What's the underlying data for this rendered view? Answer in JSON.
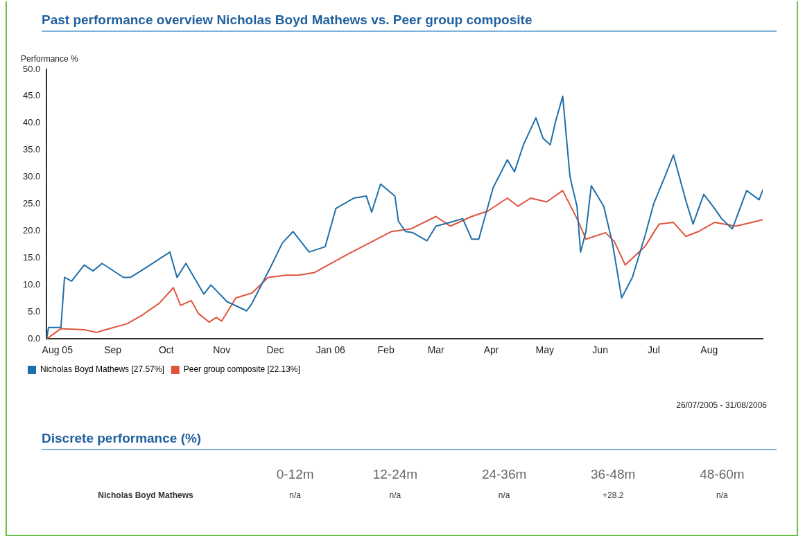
{
  "chart_data": [
    {
      "type": "line",
      "title": "Past performance overview Nicholas Boyd Mathews vs. Peer group composite",
      "ylabel": "Performance %",
      "xlim": [
        "2005-07-26",
        "2006-08-31"
      ],
      "xticks": [
        {
          "value": "2005-08-01",
          "label": "Aug 05"
        },
        {
          "value": "2005-09-01",
          "label": "Sep"
        },
        {
          "value": "2005-10-01",
          "label": "Oct"
        },
        {
          "value": "2005-11-01",
          "label": "Nov"
        },
        {
          "value": "2005-12-01",
          "label": "Dec"
        },
        {
          "value": "2006-01-01",
          "label": "Jan 06"
        },
        {
          "value": "2006-02-01",
          "label": "Feb"
        },
        {
          "value": "2006-03-01",
          "label": "Mar"
        },
        {
          "value": "2006-04-01",
          "label": "Apr"
        },
        {
          "value": "2006-05-01",
          "label": "May"
        },
        {
          "value": "2006-06-01",
          "label": "Jun"
        },
        {
          "value": "2006-07-01",
          "label": "Jul"
        },
        {
          "value": "2006-08-01",
          "label": "Aug"
        }
      ],
      "ylim": [
        0,
        50
      ],
      "yticks": [
        {
          "value": 0,
          "label": "0.0"
        },
        {
          "value": 5,
          "label": "5.0"
        },
        {
          "value": 10,
          "label": "10.0"
        },
        {
          "value": 15,
          "label": "15.0"
        },
        {
          "value": 20,
          "label": "20.0"
        },
        {
          "value": 25,
          "label": "25.0"
        },
        {
          "value": 30,
          "label": "30.0"
        },
        {
          "value": 35,
          "label": "35.0"
        },
        {
          "value": 40,
          "label": "40.0"
        },
        {
          "value": 45,
          "label": "45.0"
        },
        {
          "value": 50,
          "label": "50.0"
        }
      ],
      "grid": false,
      "legend": "bottom left",
      "marker": "none",
      "line_style": "solid",
      "series": [
        {
          "name": "Nicholas Boyd Mathews [27.57%]",
          "color": "#1f6fa8",
          "x": [
            "2005-07-26",
            "2005-07-27",
            "2005-08-03",
            "2005-08-05",
            "2005-08-09",
            "2005-08-16",
            "2005-08-21",
            "2005-08-26",
            "2005-09-07",
            "2005-09-11",
            "2005-09-21",
            "2005-10-03",
            "2005-10-07",
            "2005-10-12",
            "2005-10-22",
            "2005-10-26",
            "2005-11-04",
            "2005-11-15",
            "2005-11-18",
            "2005-11-29",
            "2005-12-05",
            "2005-12-11",
            "2005-12-20",
            "2005-12-29",
            "2006-01-04",
            "2006-01-14",
            "2006-01-21",
            "2006-01-24",
            "2006-01-29",
            "2006-02-06",
            "2006-02-08",
            "2006-02-12",
            "2006-02-16",
            "2006-02-24",
            "2006-03-01",
            "2006-03-09",
            "2006-03-16",
            "2006-03-21",
            "2006-03-25",
            "2006-04-02",
            "2006-04-10",
            "2006-04-14",
            "2006-04-19",
            "2006-04-26",
            "2006-04-30",
            "2006-05-04",
            "2006-05-07",
            "2006-05-11",
            "2006-05-15",
            "2006-05-16",
            "2006-05-19",
            "2006-05-21",
            "2006-05-24",
            "2006-05-27",
            "2006-06-03",
            "2006-06-08",
            "2006-06-13",
            "2006-06-19",
            "2006-06-26",
            "2006-07-01",
            "2006-07-07",
            "2006-07-12",
            "2006-07-19",
            "2006-07-23",
            "2006-07-29",
            "2006-08-04",
            "2006-08-08",
            "2006-08-14",
            "2006-08-22",
            "2006-08-29",
            "2006-08-31"
          ],
          "values": [
            0,
            2.1,
            2.1,
            11.4,
            10.7,
            13.7,
            12.6,
            14.0,
            11.4,
            11.4,
            13.5,
            16.1,
            11.4,
            14.0,
            8.3,
            10.0,
            6.9,
            5.2,
            6.6,
            13.7,
            17.8,
            19.9,
            16.1,
            17.1,
            24.2,
            26.1,
            26.5,
            23.5,
            28.7,
            26.5,
            21.8,
            19.9,
            19.7,
            18.2,
            20.9,
            21.6,
            22.3,
            18.5,
            18.5,
            28.0,
            33.2,
            31.0,
            36.0,
            41.0,
            37.2,
            36.0,
            40.3,
            45.0,
            30.3,
            28.7,
            24.6,
            16.1,
            19.9,
            28.4,
            24.6,
            17.5,
            7.6,
            11.4,
            19.0,
            25.1,
            29.9,
            34.1,
            25.6,
            21.3,
            26.8,
            24.2,
            22.3,
            20.4,
            27.5,
            25.8,
            27.6
          ]
        },
        {
          "name": "Peer group composite [22.13%]",
          "color": "#e0533a",
          "x": [
            "2005-07-26",
            "2005-08-03",
            "2005-08-16",
            "2005-08-23",
            "2005-08-28",
            "2005-09-09",
            "2005-09-17",
            "2005-09-27",
            "2005-10-05",
            "2005-10-09",
            "2005-10-15",
            "2005-10-19",
            "2005-10-25",
            "2005-10-29",
            "2005-11-01",
            "2005-11-09",
            "2005-11-18",
            "2005-11-27",
            "2005-12-07",
            "2005-12-14",
            "2005-12-23",
            "2006-01-10",
            "2006-01-24",
            "2006-02-04",
            "2006-02-15",
            "2006-03-01",
            "2006-03-09",
            "2006-03-21",
            "2006-03-30",
            "2006-04-10",
            "2006-04-16",
            "2006-04-23",
            "2006-05-02",
            "2006-05-11",
            "2006-05-19",
            "2006-05-24",
            "2006-06-04",
            "2006-06-09",
            "2006-06-15",
            "2006-06-26",
            "2006-07-04",
            "2006-07-12",
            "2006-07-19",
            "2006-07-26",
            "2006-08-04",
            "2006-08-16",
            "2006-08-31"
          ],
          "values": [
            0,
            1.9,
            1.7,
            1.2,
            1.7,
            2.8,
            4.3,
            6.6,
            9.5,
            6.2,
            7.1,
            4.7,
            3.1,
            4.0,
            3.3,
            7.6,
            8.5,
            11.4,
            11.8,
            11.8,
            12.3,
            15.6,
            18.0,
            19.9,
            20.4,
            22.7,
            20.9,
            22.7,
            23.7,
            26.1,
            24.6,
            26.1,
            25.4,
            27.5,
            22.3,
            18.5,
            19.7,
            18.0,
            13.7,
            17.1,
            21.3,
            21.6,
            19.0,
            19.9,
            21.6,
            20.9,
            22.1
          ]
        }
      ],
      "annotations": [
        "26/07/2005 - 31/08/2006"
      ]
    },
    {
      "type": "other",
      "title": "Discrete performance (%)",
      "categories": [
        "0-12m",
        "12-24m",
        "24-36m",
        "36-48m",
        "48-60m"
      ],
      "y_categories": [
        "Nicholas Boyd Mathews"
      ],
      "cell_labels": [
        [
          "n/a",
          "n/a",
          "n/a",
          "+28.2",
          "n/a"
        ]
      ]
    }
  ]
}
